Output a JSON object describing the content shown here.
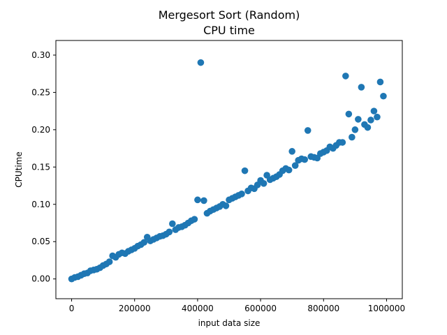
{
  "chart_data": {
    "type": "scatter",
    "title_line1": "Mergesort Sort (Random)",
    "title_line2": "CPU time",
    "xlabel": "input data size",
    "ylabel": "CPUtime",
    "xlim": [
      -50000,
      1050000
    ],
    "ylim": [
      -0.0265,
      0.3196
    ],
    "xticks": [
      0,
      200000,
      400000,
      600000,
      800000,
      1000000
    ],
    "yticks": [
      0.0,
      0.05,
      0.1,
      0.15,
      0.2,
      0.25,
      0.3
    ],
    "ytick_labels": [
      "0.00",
      "0.05",
      "0.10",
      "0.15",
      "0.20",
      "0.25",
      "0.30"
    ],
    "grid": false,
    "point_color": "#1f77b4",
    "series": [
      {
        "x": [
          0,
          10000,
          20000,
          30000,
          40000,
          50000,
          60000,
          70000,
          80000,
          90000,
          100000,
          110000,
          120000,
          130000,
          140000,
          150000,
          160000,
          170000,
          180000,
          190000,
          200000,
          210000,
          220000,
          230000,
          240000,
          250000,
          260000,
          270000,
          280000,
          290000,
          300000,
          310000,
          320000,
          330000,
          340000,
          350000,
          360000,
          370000,
          380000,
          390000,
          400000,
          410000,
          420000,
          430000,
          440000,
          450000,
          460000,
          470000,
          480000,
          490000,
          500000,
          510000,
          520000,
          530000,
          540000,
          550000,
          560000,
          570000,
          580000,
          590000,
          600000,
          610000,
          620000,
          630000,
          640000,
          650000,
          660000,
          670000,
          680000,
          690000,
          700000,
          710000,
          720000,
          730000,
          740000,
          750000,
          760000,
          770000,
          780000,
          790000,
          800000,
          810000,
          820000,
          830000,
          840000,
          850000,
          860000,
          870000,
          880000,
          890000,
          900000,
          910000,
          920000,
          930000,
          940000,
          950000,
          960000,
          970000,
          980000,
          990000
        ],
        "y": [
          0.0,
          0.002,
          0.003,
          0.005,
          0.007,
          0.008,
          0.011,
          0.012,
          0.013,
          0.015,
          0.018,
          0.02,
          0.023,
          0.031,
          0.029,
          0.033,
          0.035,
          0.034,
          0.037,
          0.039,
          0.041,
          0.044,
          0.046,
          0.049,
          0.056,
          0.051,
          0.053,
          0.055,
          0.057,
          0.058,
          0.06,
          0.063,
          0.074,
          0.066,
          0.069,
          0.07,
          0.072,
          0.075,
          0.078,
          0.08,
          0.106,
          0.29,
          0.105,
          0.088,
          0.091,
          0.093,
          0.095,
          0.097,
          0.1,
          0.098,
          0.106,
          0.108,
          0.11,
          0.112,
          0.114,
          0.145,
          0.118,
          0.122,
          0.121,
          0.126,
          0.132,
          0.128,
          0.139,
          0.133,
          0.135,
          0.137,
          0.14,
          0.145,
          0.148,
          0.146,
          0.171,
          0.152,
          0.159,
          0.161,
          0.16,
          0.199,
          0.164,
          0.163,
          0.162,
          0.168,
          0.17,
          0.172,
          0.177,
          0.175,
          0.179,
          0.183,
          0.183,
          0.272,
          0.221,
          0.19,
          0.2,
          0.214,
          0.257,
          0.207,
          0.203,
          0.213,
          0.225,
          0.217,
          0.264,
          0.245
        ]
      }
    ]
  }
}
